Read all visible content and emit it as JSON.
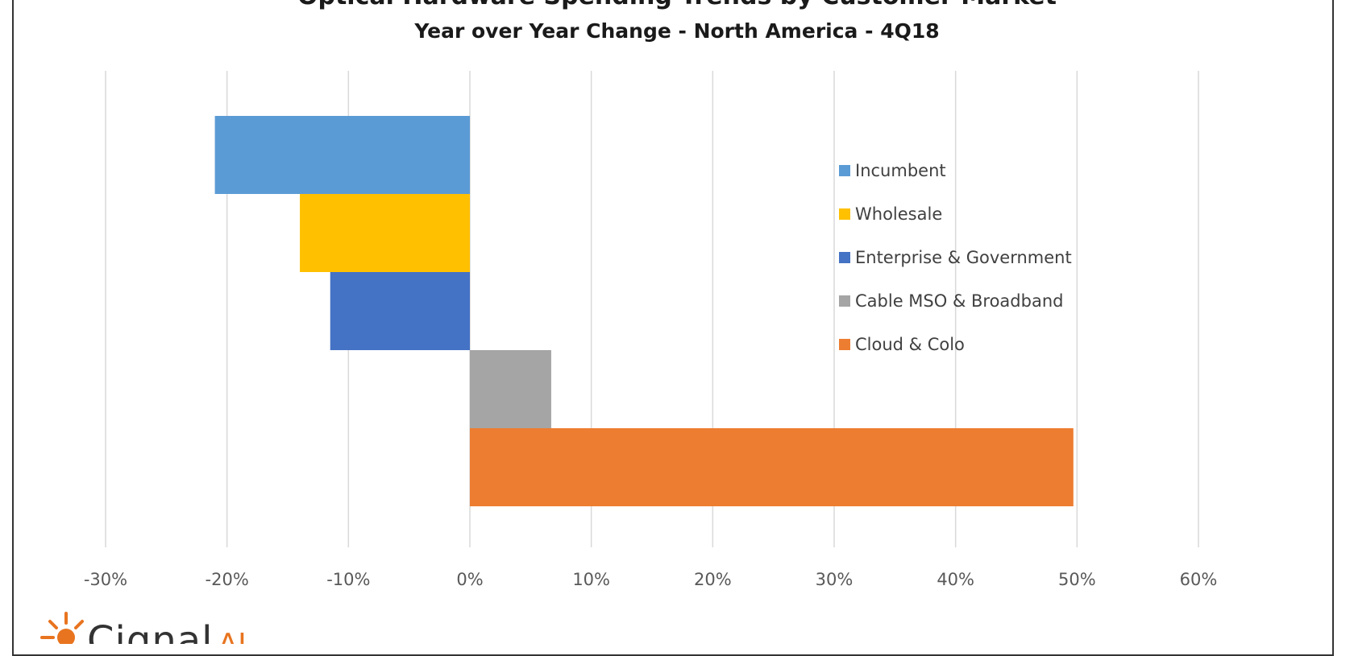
{
  "chart_data": {
    "type": "bar",
    "orientation": "horizontal",
    "title": "Optical Hardware Spending Trends by Customer Market",
    "subtitle": "Year over Year Change - North America - 4Q18",
    "categories": [
      "Incumbent",
      "Wholesale",
      "Enterprise & Government",
      "Cable MSO & Broadband",
      "Cloud & Colo"
    ],
    "values": [
      -21,
      -14,
      -11.5,
      6.7,
      49.7
    ],
    "colors": [
      "#5b9bd5",
      "#ffc000",
      "#4472c4",
      "#a5a5a5",
      "#ed7d31"
    ],
    "xlim": [
      -30,
      60
    ],
    "xticks": [
      -30,
      -20,
      -10,
      0,
      10,
      20,
      30,
      40,
      50,
      60
    ],
    "xtick_labels": [
      "-30%",
      "-20%",
      "-10%",
      "0%",
      "10%",
      "20%",
      "30%",
      "40%",
      "50%",
      "60%"
    ],
    "grid": true,
    "legend_position": "right"
  },
  "logo": {
    "text": "Cignal",
    "suffix": "AI"
  }
}
